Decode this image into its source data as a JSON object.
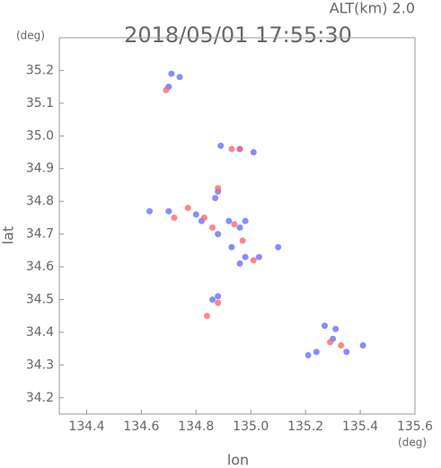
{
  "chart_data": {
    "type": "scatter",
    "title": "2018/05/01 17:55:30",
    "annotation": "ALT(km) 2.0",
    "y_unit": "(deg)",
    "x_unit": "(deg)",
    "xlabel": "lon",
    "ylabel": "lat",
    "xlim": [
      134.3,
      135.6
    ],
    "ylim": [
      34.15,
      35.3
    ],
    "xticks": [
      134.4,
      134.6,
      134.8,
      {
        "value": 135,
        "label": "135.0"
      },
      135.2,
      135.4,
      135.6
    ],
    "yticks": [
      34.2,
      34.3,
      34.4,
      34.5,
      34.6,
      34.7,
      34.8,
      34.9,
      {
        "value": 35,
        "label": "35.0"
      },
      35.1,
      35.2
    ],
    "series": [
      {
        "color": "#6670ff",
        "x": [
          134.71,
          134.74,
          134.7,
          134.89,
          134.96,
          135.01,
          134.88,
          134.87,
          134.63,
          134.7,
          134.82,
          134.92,
          134.96,
          134.88,
          134.93,
          134.98,
          134.96,
          135.03,
          134.88,
          134.86,
          135.27,
          135.3,
          135.24,
          135.35,
          135.41,
          135.21,
          135.31,
          134.8,
          134.98,
          135.1
        ],
        "values": [
          35.19,
          35.18,
          35.15,
          34.97,
          34.96,
          34.95,
          34.83,
          34.81,
          34.77,
          34.77,
          34.74,
          34.74,
          34.72,
          34.7,
          34.66,
          34.63,
          34.61,
          34.63,
          34.51,
          34.5,
          34.42,
          34.38,
          34.34,
          34.34,
          34.36,
          34.33,
          34.41,
          34.76,
          34.74,
          34.66
        ]
      },
      {
        "color": "#ff6670",
        "x": [
          134.69,
          134.93,
          134.96,
          134.88,
          134.77,
          134.83,
          134.94,
          134.97,
          135.01,
          134.88,
          134.84,
          135.29,
          135.33,
          134.72,
          134.86
        ],
        "values": [
          35.14,
          34.96,
          34.96,
          34.84,
          34.78,
          34.75,
          34.73,
          34.68,
          34.62,
          34.49,
          34.45,
          34.37,
          34.36,
          34.75,
          34.72
        ]
      }
    ]
  }
}
